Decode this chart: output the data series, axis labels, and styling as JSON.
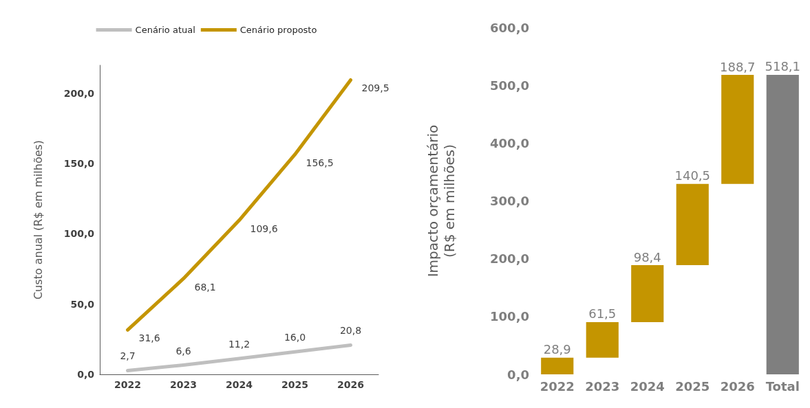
{
  "chart_data": [
    {
      "type": "line",
      "categories": [
        "2022",
        "2023",
        "2024",
        "2025",
        "2026"
      ],
      "ylabel": "Custo anual (R$ em milhões)",
      "series": [
        {
          "name": "Cenário atual",
          "color": "#bfbfbf",
          "values": [
            2.7,
            6.6,
            11.2,
            16.0,
            20.8
          ],
          "value_labels": [
            "2,7",
            "6,6",
            "11,2",
            "16,0",
            "20,8"
          ]
        },
        {
          "name": "Cenário proposto",
          "color": "#c49500",
          "values": [
            31.6,
            68.1,
            109.6,
            156.5,
            209.5
          ],
          "value_labels": [
            "31,6",
            "68,1",
            "109,6",
            "156,5",
            "209,5"
          ]
        }
      ],
      "ylim": [
        0,
        220
      ],
      "yticks": [
        {
          "value": 0,
          "label": "0,0"
        },
        {
          "value": 50,
          "label": "50,0"
        },
        {
          "value": 100,
          "label": "100,0"
        },
        {
          "value": 150,
          "label": "150,0"
        },
        {
          "value": 200,
          "label": "200,0"
        }
      ],
      "grid": false,
      "legend": "top",
      "marker": "none",
      "line_style": "solid"
    },
    {
      "type": "bar",
      "categories": [
        "2022",
        "2023",
        "2024",
        "2025",
        "2026",
        "Total"
      ],
      "ylabel": "Impacto orçamentário\n(R$ em milhões)",
      "values": [
        28.9,
        61.5,
        98.4,
        140.5,
        188.7,
        518.1
      ],
      "base": [
        0,
        28.9,
        90.4,
        188.8,
        329.3,
        0
      ],
      "colors": [
        "#c49500",
        "#c49500",
        "#c49500",
        "#c49500",
        "#c49500",
        "#7f7f7f"
      ],
      "value_labels": [
        "28,9",
        "61,5",
        "98,4",
        "140,5",
        "188,7",
        "518,1"
      ],
      "ylim": [
        0,
        600
      ],
      "yticks": [
        {
          "value": 0,
          "label": "0,0"
        },
        {
          "value": 100,
          "label": "100,0"
        },
        {
          "value": 200,
          "label": "200,0"
        },
        {
          "value": 300,
          "label": "300,0"
        },
        {
          "value": 400,
          "label": "400,0"
        },
        {
          "value": 500,
          "label": "500,0"
        },
        {
          "value": 600,
          "label": "600,0"
        }
      ],
      "grid": false,
      "legend": false
    }
  ]
}
